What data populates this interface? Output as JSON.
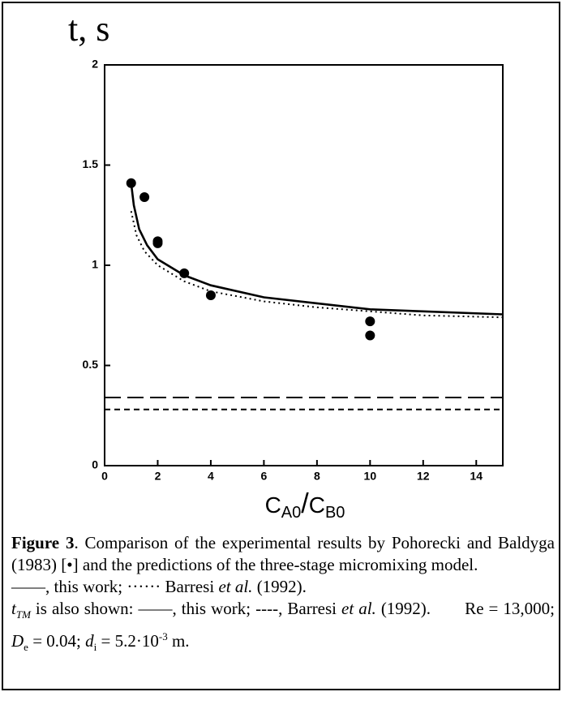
{
  "chart_data": {
    "type": "scatter",
    "title": "t, s",
    "xlabel_parts": [
      "C",
      "A0",
      "/",
      "C",
      "B0"
    ],
    "xlim": [
      0,
      15
    ],
    "xticks": [
      0,
      2,
      4,
      6,
      8,
      10,
      12,
      14
    ],
    "ylim": [
      0,
      2
    ],
    "yticks": [
      0,
      0.5,
      1,
      1.5,
      2
    ],
    "color": "#000000",
    "points": {
      "x": [
        1,
        1.5,
        2,
        2,
        3,
        4,
        10,
        10
      ],
      "values": [
        1.41,
        1.34,
        1.12,
        1.11,
        0.96,
        0.85,
        0.72,
        0.65
      ]
    },
    "series": [
      {
        "style": "solid",
        "color": "#000000",
        "x": [
          1,
          1.1,
          1.3,
          1.6,
          2,
          3,
          4,
          6,
          8,
          10,
          12,
          15
        ],
        "values": [
          1.41,
          1.3,
          1.18,
          1.1,
          1.03,
          0.95,
          0.9,
          0.84,
          0.81,
          0.78,
          0.77,
          0.755
        ]
      },
      {
        "style": "dotted",
        "color": "#000000",
        "x": [
          1,
          1.2,
          1.5,
          2,
          3,
          4,
          6,
          8,
          10,
          12,
          15
        ],
        "values": [
          1.27,
          1.15,
          1.07,
          1.0,
          0.92,
          0.87,
          0.82,
          0.79,
          0.77,
          0.75,
          0.74
        ]
      },
      {
        "style": "longdash",
        "color": "#000000",
        "x": [
          0,
          15
        ],
        "values": [
          0.34,
          0.34
        ]
      },
      {
        "style": "shortdash",
        "color": "#000000",
        "x": [
          0,
          15
        ],
        "values": [
          0.28,
          0.28
        ]
      }
    ]
  },
  "caption": {
    "paragraphs": [
      [
        "Figure 3",
        ". Comparison of the experimental results by Pohorecki and Baldyga (1983) [•] and the predictions of the three-stage micromixing model."
      ],
      [
        "——, this work; ······ Barresi ",
        "et al.",
        " (1992)."
      ],
      [
        "t",
        "TM",
        " is also shown: ——, this work; ----, Barresi ",
        "et al.",
        " (1992).       Re = 13,000; ",
        "D",
        "e",
        " = 0.04; ",
        "d",
        "i",
        " = 5.2·10",
        "-3",
        " m."
      ]
    ]
  }
}
